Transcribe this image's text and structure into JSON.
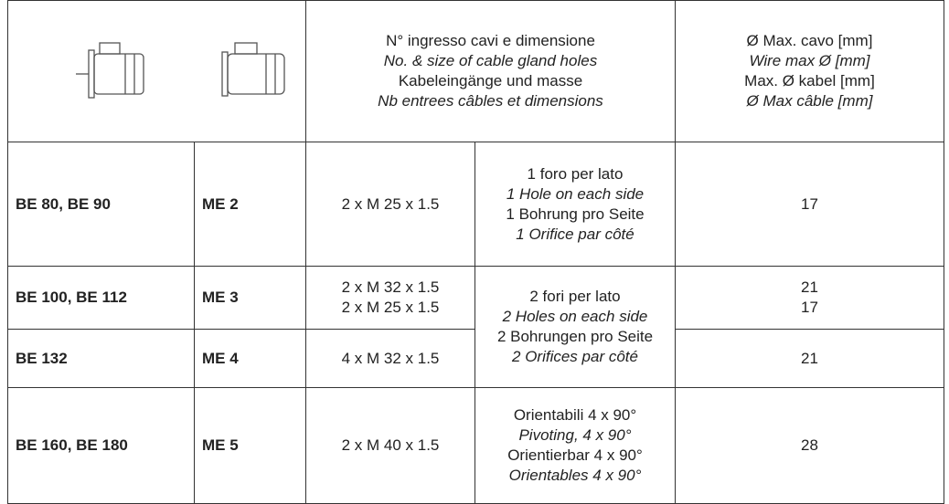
{
  "header": {
    "cable_entries": [
      "N° ingresso cavi e dimensione",
      "No. & size of cable gland holes",
      "Kabeleingänge und masse",
      "Nb entrees câbles et dimensions"
    ],
    "max_cable": [
      "Ø Max. cavo [mm]",
      "Wire max Ø [mm]",
      "Max. Ø kabel [mm]",
      "Ø Max câble [mm]"
    ]
  },
  "rows": [
    {
      "motor": "BE 80, BE 90",
      "me": "ME 2",
      "glands": [
        "2 x M 25 x 1.5"
      ],
      "holes": [
        "1 foro per lato",
        "1 Hole on each side",
        "1 Bohrung pro Seite",
        "1 Orifice par côté"
      ],
      "max": [
        "17"
      ]
    },
    {
      "motor": "BE 100, BE 112",
      "me": "ME 3",
      "glands": [
        "2 x M 32 x 1.5",
        "2 x M 25 x 1.5"
      ],
      "holes": [
        "2 fori per lato",
        "2 Holes on each side",
        "2 Bohrungen pro Seite",
        "2 Orifices par côté"
      ],
      "max": [
        "21",
        "17"
      ]
    },
    {
      "motor": "BE 132",
      "me": "ME 4",
      "glands": [
        "4 x M 32 x 1.5"
      ],
      "max": [
        "21"
      ]
    },
    {
      "motor": "BE 160, BE 180",
      "me": "ME 5",
      "glands": [
        "2 x M 40 x 1.5"
      ],
      "holes": [
        "Orientabili 4 x 90°",
        "Pivoting, 4 x 90°",
        "Orientierbar 4 x 90°",
        "Orientables 4 x 90°"
      ],
      "max": [
        "28"
      ]
    }
  ]
}
